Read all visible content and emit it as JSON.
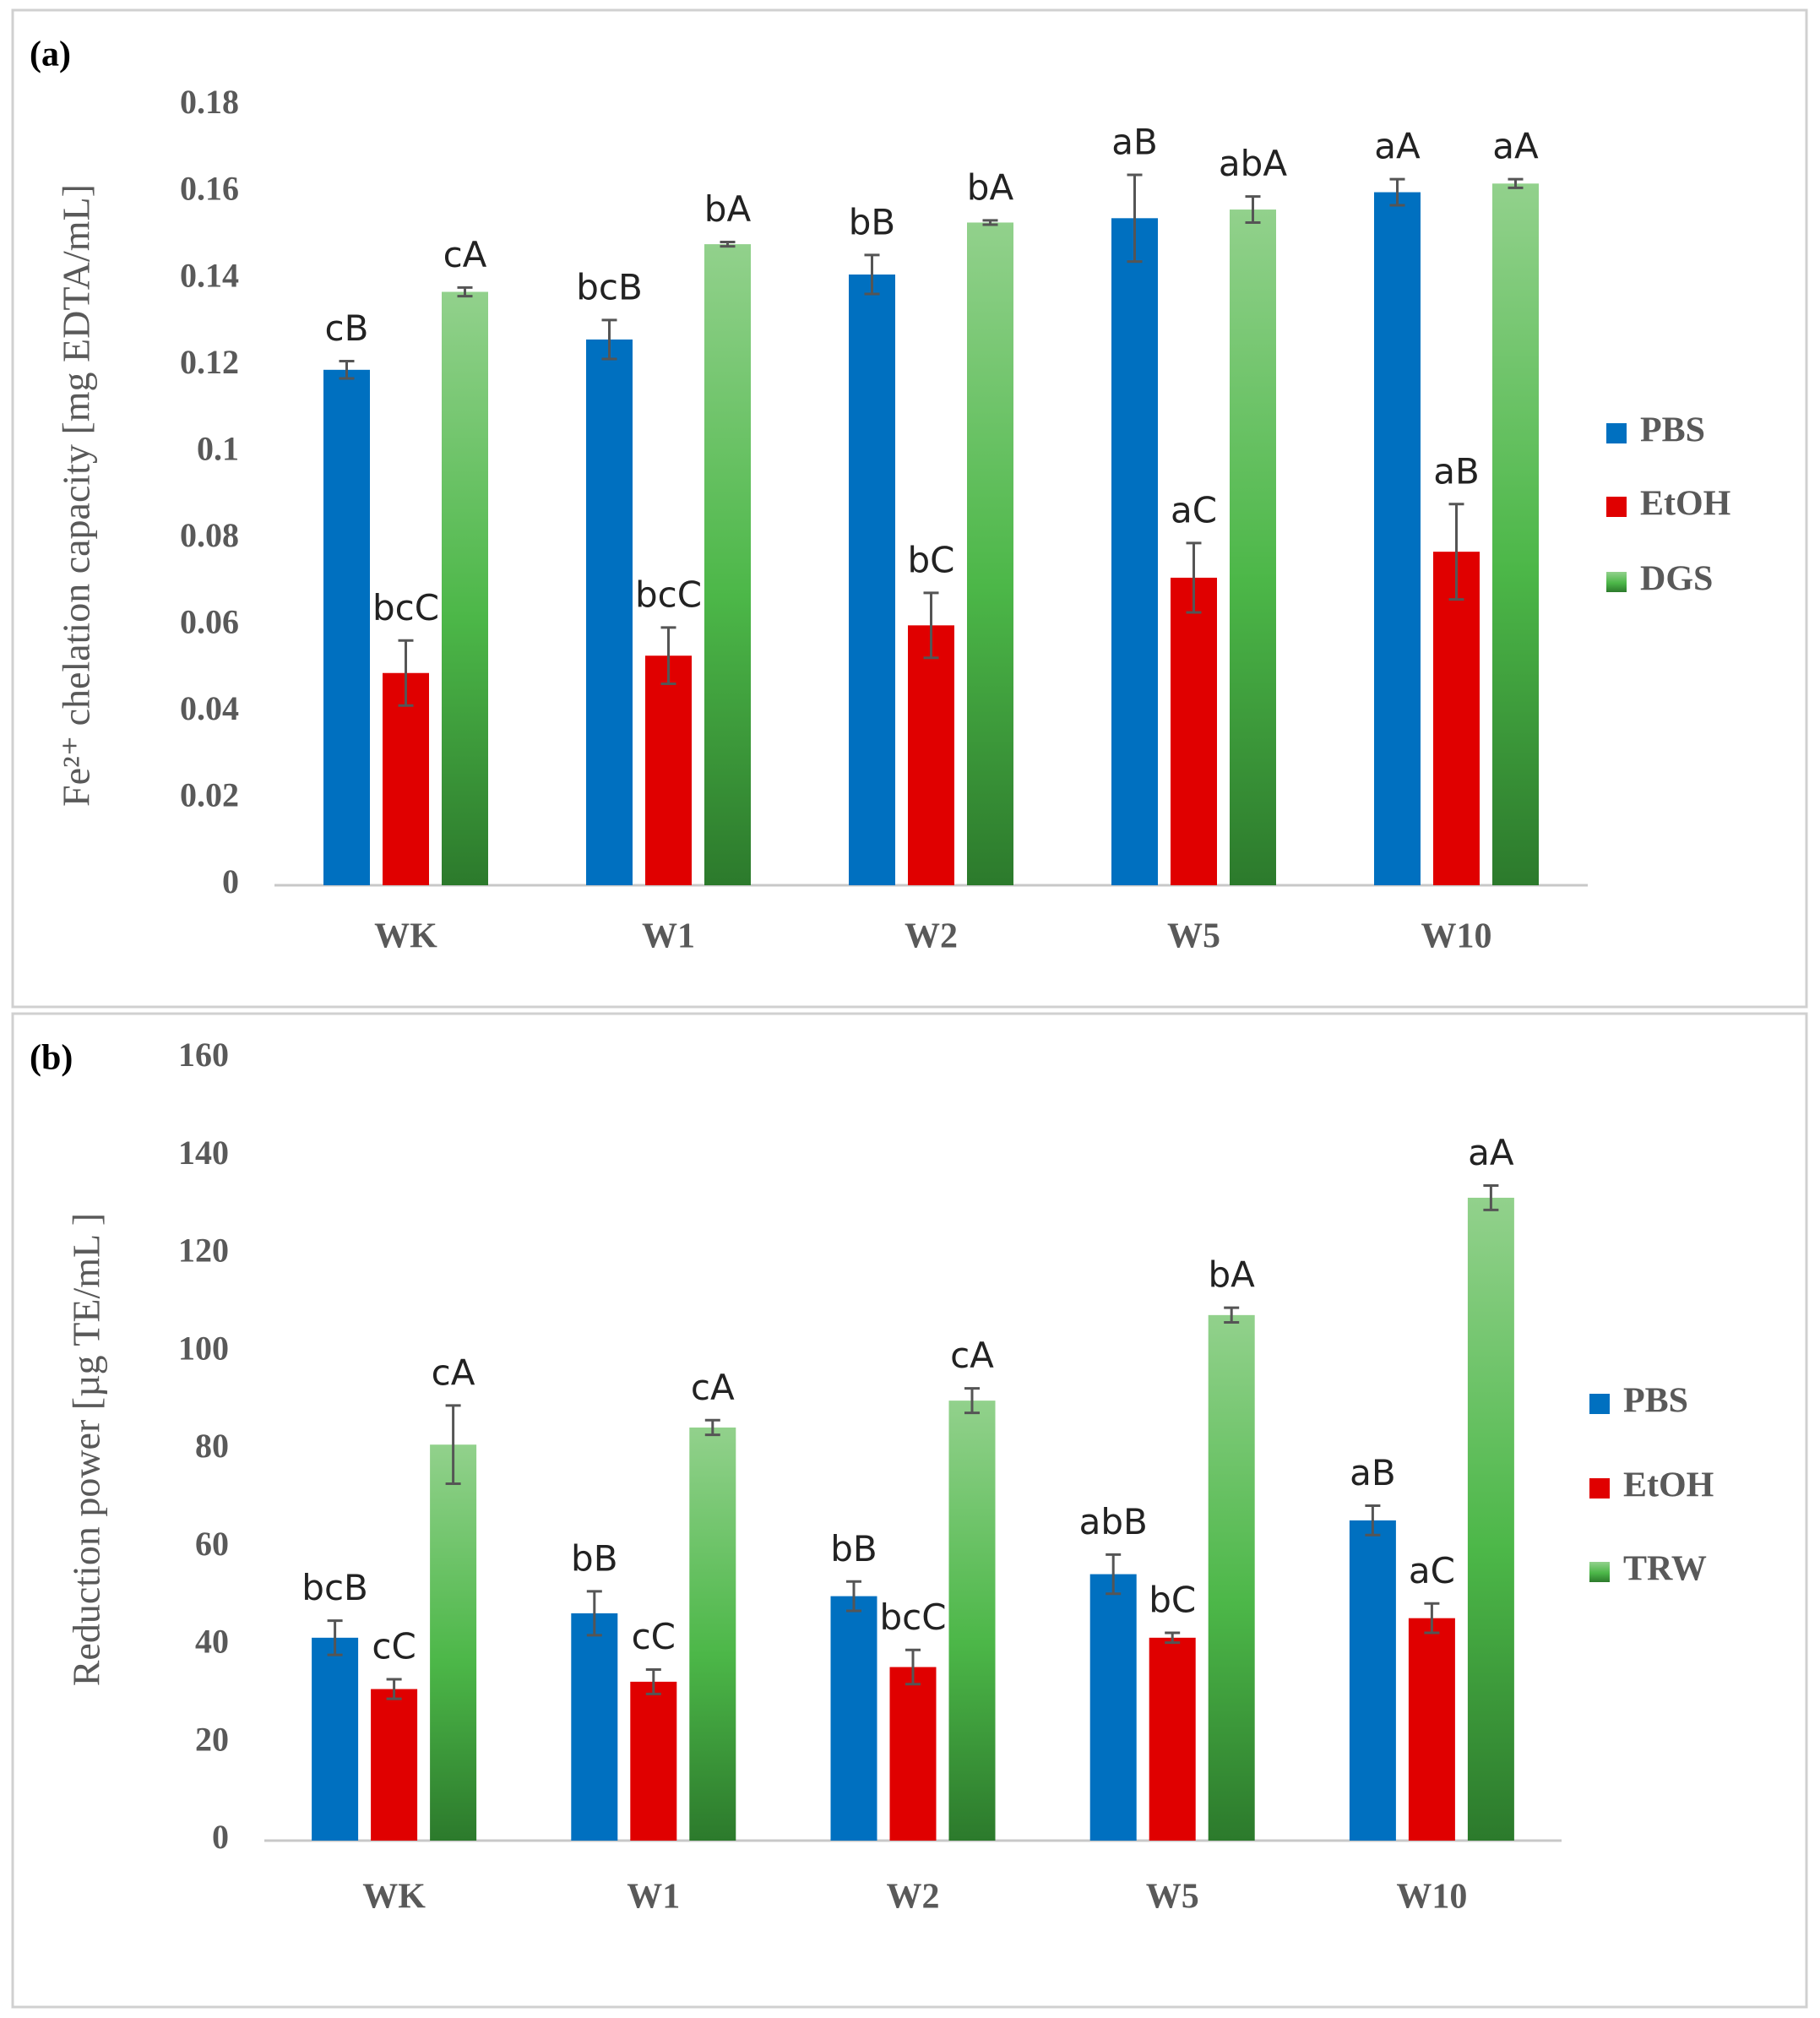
{
  "chart_data": [
    {
      "type": "bar",
      "panel": "(a)",
      "y_label": "Fe²⁺ chelation capacity [mg EDTA/mL]",
      "categories": [
        "WK",
        "W1",
        "W2",
        "W5",
        "W10"
      ],
      "ylim": [
        0,
        0.18
      ],
      "yticks": [
        0,
        0.02,
        0.04,
        0.06,
        0.08,
        0.1,
        0.12,
        0.14,
        0.16,
        0.18
      ],
      "series": [
        {
          "name": "PBS",
          "color": "#0070c0",
          "values": [
            0.119,
            0.126,
            0.141,
            0.154,
            0.16
          ],
          "errors": [
            0.002,
            0.0045,
            0.0045,
            0.01,
            0.003
          ],
          "letters": [
            "cB",
            "bcB",
            "bB",
            "aB",
            "aA"
          ]
        },
        {
          "name": "EtOH",
          "color": "#e00000",
          "values": [
            0.049,
            0.053,
            0.06,
            0.071,
            0.077
          ],
          "errors": [
            0.0075,
            0.0065,
            0.0075,
            0.008,
            0.011
          ],
          "letters": [
            "bcC",
            "bcC",
            "bC",
            "aC",
            "aB"
          ]
        },
        {
          "name": "DGS",
          "color": "#3fa63a",
          "gradient": true,
          "values": [
            0.137,
            0.148,
            0.153,
            0.156,
            0.162
          ],
          "errors": [
            0.001,
            0.0005,
            0.0005,
            0.003,
            0.001
          ],
          "letters": [
            "cA",
            "bA",
            "bA",
            "abA",
            "aA"
          ]
        }
      ]
    },
    {
      "type": "bar",
      "panel": "(b)",
      "y_label": "Reduction power [µg TE/mL ]",
      "categories": [
        "WK",
        "W1",
        "W2",
        "W5",
        "W10"
      ],
      "ylim": [
        0,
        160
      ],
      "yticks": [
        0,
        20,
        40,
        60,
        80,
        100,
        120,
        140,
        160
      ],
      "series": [
        {
          "name": "PBS",
          "color": "#0070c0",
          "values": [
            41.5,
            46.5,
            50,
            54.5,
            65.5
          ],
          "errors": [
            3.5,
            4.5,
            3,
            4,
            3
          ],
          "letters": [
            "bcB",
            "bB",
            "bB",
            "abB",
            "aB"
          ]
        },
        {
          "name": "EtOH",
          "color": "#e00000",
          "values": [
            31,
            32.5,
            35.5,
            41.5,
            45.5
          ],
          "errors": [
            2,
            2.5,
            3.5,
            1,
            3
          ],
          "letters": [
            "cC",
            "cC",
            "bcC",
            "bC",
            "aC"
          ]
        },
        {
          "name": "TRW",
          "color": "#3fa63a",
          "gradient": true,
          "values": [
            81,
            84.5,
            90,
            107.5,
            131.5
          ],
          "errors": [
            8,
            1.5,
            2.5,
            1.5,
            2.5
          ],
          "letters": [
            "cA",
            "cA",
            "cA",
            "bA",
            "aA"
          ]
        }
      ]
    }
  ]
}
